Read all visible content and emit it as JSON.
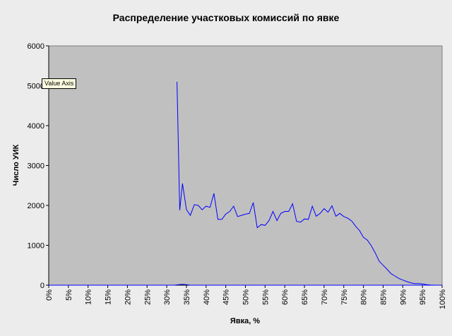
{
  "chart_data": {
    "type": "line",
    "title": "Распределение участковых комиссий по явке",
    "xlabel": "Явка, %",
    "ylabel": "Число УИК",
    "ylim": [
      0,
      6000
    ],
    "xlim": [
      0,
      100
    ],
    "yticks": [
      0,
      1000,
      2000,
      3000,
      4000,
      5000,
      6000
    ],
    "xticks": [
      "0%",
      "5%",
      "10%",
      "15%",
      "20%",
      "25%",
      "30%",
      "35%",
      "40%",
      "45%",
      "50%",
      "55%",
      "60%",
      "65%",
      "70%",
      "75%",
      "80%",
      "85%",
      "90%",
      "95%",
      "100%"
    ],
    "grid": false,
    "legend": "none",
    "series": [
      {
        "color": "#0000ff",
        "x": [
          32.6,
          33.3,
          34,
          35,
          36,
          37,
          38,
          39,
          40,
          41,
          42,
          43,
          44,
          45,
          46,
          47,
          48,
          49,
          50,
          51,
          52,
          53,
          54,
          55,
          56,
          57,
          58,
          59,
          60,
          61,
          62,
          63,
          64,
          65,
          66,
          67,
          68,
          69,
          70,
          71,
          72,
          73,
          74,
          75,
          76,
          77,
          78,
          79,
          80,
          81,
          82,
          83,
          84,
          85,
          86,
          87,
          88,
          89,
          90,
          91,
          92,
          93,
          94,
          95,
          96,
          97,
          98,
          99,
          100
        ],
        "y": [
          5100,
          1880,
          2550,
          1900,
          1750,
          2020,
          2000,
          1890,
          1980,
          1950,
          2300,
          1650,
          1650,
          1780,
          1850,
          1980,
          1720,
          1750,
          1780,
          1800,
          2070,
          1440,
          1520,
          1500,
          1620,
          1850,
          1620,
          1800,
          1850,
          1850,
          2040,
          1600,
          1580,
          1660,
          1650,
          1980,
          1730,
          1800,
          1920,
          1830,
          1990,
          1730,
          1800,
          1720,
          1680,
          1610,
          1480,
          1370,
          1200,
          1130,
          990,
          810,
          600,
          500,
          400,
          290,
          230,
          170,
          130,
          90,
          60,
          40,
          40,
          30,
          15,
          5,
          0,
          0,
          0
        ]
      },
      {
        "color": "#0000ff",
        "x": [
          0,
          5,
          10,
          15,
          20,
          25,
          30,
          32,
          33,
          34,
          35,
          36,
          40,
          50,
          60,
          70,
          80,
          90,
          100
        ],
        "y": [
          0,
          0,
          0,
          0,
          0,
          0,
          0,
          0,
          15,
          20,
          15,
          0,
          0,
          0,
          0,
          0,
          0,
          0,
          0
        ]
      }
    ]
  },
  "tooltip": {
    "text": "Value Axis"
  }
}
